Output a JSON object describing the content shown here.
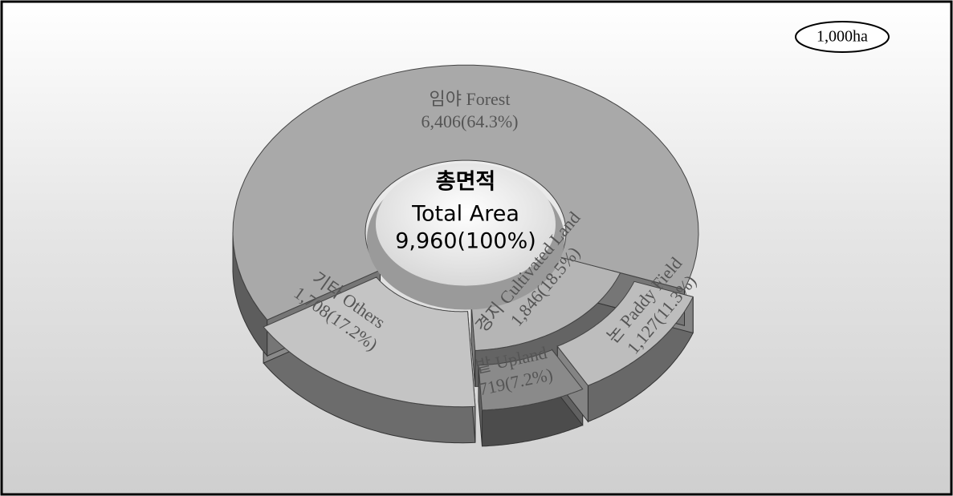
{
  "chart_data": {
    "type": "pie",
    "unit": "1,000ha",
    "center": {
      "title_ko": "총면적",
      "title": "Total Area",
      "value": 9960,
      "value_label": "9,960(100%)"
    },
    "categories": [
      "임야 Forest",
      "기타 Others",
      "경지 Cultivated Land"
    ],
    "values": [
      6406,
      1708,
      1846
    ],
    "value_labels": [
      "6,406(64.3%)",
      "1,708(17.2%)",
      "1,846(18.5%)"
    ],
    "colors": [
      "#a9a9a9",
      "#c4c4c4",
      "#b5b5b5"
    ],
    "breakdown": {
      "categories": [
        "밭 Upland",
        "논 Paddy Field"
      ],
      "values": [
        719,
        1127
      ],
      "value_labels": [
        "719(7.2%)",
        "1,127(11.3%)"
      ],
      "colors": [
        "#8a8a8a",
        "#bdbdbd"
      ]
    }
  }
}
